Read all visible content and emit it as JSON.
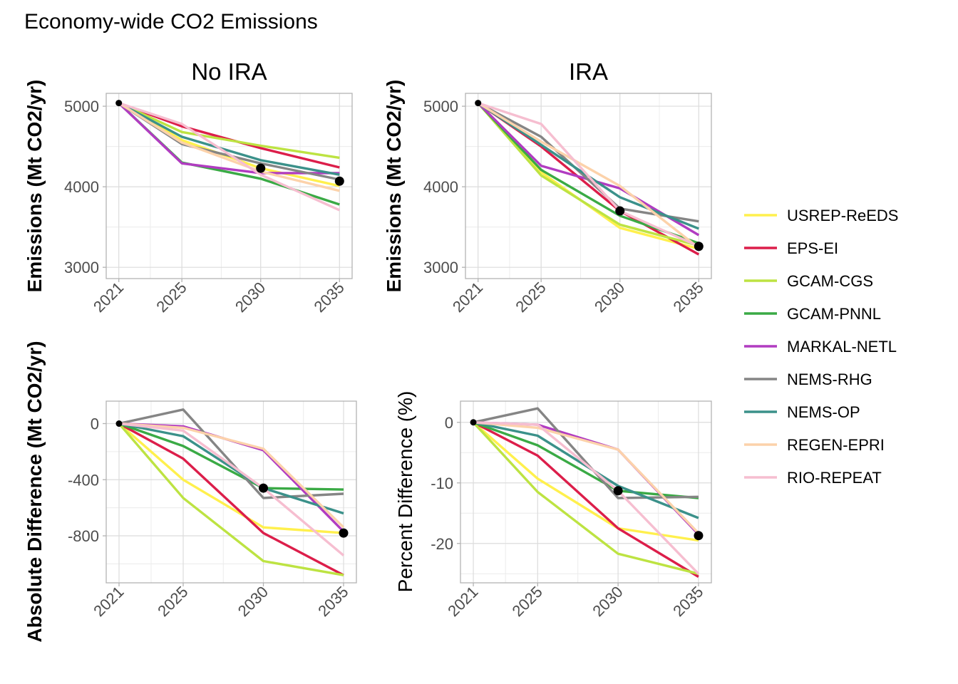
{
  "chart_data": {
    "type": "line",
    "title": "Economy-wide CO2 Emissions",
    "x": [
      2021,
      2025,
      2030,
      2035
    ],
    "legend": {
      "position": "right",
      "entries": [
        {
          "name": "USREP-ReEDS",
          "color": "#fff04d"
        },
        {
          "name": "EPS-EI",
          "color": "#dc1e4a"
        },
        {
          "name": "GCAM-CGS",
          "color": "#bde342"
        },
        {
          "name": "GCAM-PNNL",
          "color": "#3aaa45"
        },
        {
          "name": "MARKAL-NETL",
          "color": "#b13cc1"
        },
        {
          "name": "NEMS-RHG",
          "color": "#858585"
        },
        {
          "name": "NEMS-OP",
          "color": "#3b918a"
        },
        {
          "name": "REGEN-EPRI",
          "color": "#fcd2aa"
        },
        {
          "name": "RIO-REPEAT",
          "color": "#f6bed0"
        }
      ]
    },
    "panels": [
      {
        "id": "no-ira",
        "strip": "No IRA",
        "ylabel": "Emissions (Mt CO2/yr)",
        "ylabel_bold": true,
        "ylim": [
          2860,
          5160
        ],
        "yticks": [
          3000,
          4000,
          5000
        ],
        "ytick_labels": [
          "3000",
          "4000",
          "5000"
        ],
        "xtick_labels": [
          "2021",
          "2025",
          "2030",
          "2035"
        ],
        "series": [
          {
            "name": "USREP-ReEDS",
            "values": [
              5040,
              4580,
              4230,
              4010
            ]
          },
          {
            "name": "EPS-EI",
            "values": [
              5040,
              4750,
              4480,
              4240
            ]
          },
          {
            "name": "GCAM-CGS",
            "values": [
              5040,
              4680,
              4510,
              4360
            ]
          },
          {
            "name": "GCAM-PNNL",
            "values": [
              5040,
              4300,
              4100,
              3780
            ]
          },
          {
            "name": "MARKAL-NETL",
            "values": [
              5040,
              4290,
              4170,
              4170
            ]
          },
          {
            "name": "NEMS-RHG",
            "values": [
              5040,
              4530,
              4290,
              4090
            ]
          },
          {
            "name": "NEMS-OP",
            "values": [
              5040,
              4620,
              4330,
              4150
            ]
          },
          {
            "name": "REGEN-EPRI",
            "values": [
              5040,
              4550,
              4190,
              3950
            ]
          },
          {
            "name": "RIO-REPEAT",
            "values": [
              5040,
              4780,
              4150,
              3710
            ]
          }
        ],
        "markers": [
          {
            "x": 2021,
            "y": 5040,
            "size": "small"
          },
          {
            "x": 2030,
            "y": 4230,
            "size": "large"
          },
          {
            "x": 2035,
            "y": 4070,
            "size": "large"
          }
        ]
      },
      {
        "id": "ira",
        "strip": "IRA",
        "ylabel": "Emissions (Mt CO2/yr)",
        "ylabel_bold": true,
        "ylim": [
          2860,
          5160
        ],
        "yticks": [
          3000,
          4000,
          5000
        ],
        "ytick_labels": [
          "3000",
          "4000",
          "5000"
        ],
        "xtick_labels": [
          "2021",
          "2025",
          "2030",
          "2035"
        ],
        "series": [
          {
            "name": "USREP-ReEDS",
            "values": [
              5040,
              4180,
              3490,
              3230
            ]
          },
          {
            "name": "EPS-EI",
            "values": [
              5040,
              4500,
              3700,
              3160
            ]
          },
          {
            "name": "GCAM-CGS",
            "values": [
              5040,
              4140,
              3530,
              3270
            ]
          },
          {
            "name": "GCAM-PNNL",
            "values": [
              5040,
              4210,
              3640,
              3300
            ]
          },
          {
            "name": "MARKAL-NETL",
            "values": [
              5040,
              4260,
              3980,
              3400
            ]
          },
          {
            "name": "NEMS-RHG",
            "values": [
              5040,
              4620,
              3730,
              3570
            ]
          },
          {
            "name": "NEMS-OP",
            "values": [
              5040,
              4520,
              3870,
              3480
            ]
          },
          {
            "name": "REGEN-EPRI",
            "values": [
              5040,
              4560,
              4010,
              3240
            ]
          },
          {
            "name": "RIO-REPEAT",
            "values": [
              5040,
              4780,
              3700,
              3260
            ]
          }
        ],
        "markers": [
          {
            "x": 2021,
            "y": 5040,
            "size": "small"
          },
          {
            "x": 2030,
            "y": 3700,
            "size": "large"
          },
          {
            "x": 2035,
            "y": 3260,
            "size": "large"
          }
        ]
      },
      {
        "id": "absolute-difference",
        "strip": "",
        "ylabel": "Absolute Difference (Mt CO2/yr)",
        "ylabel_bold": true,
        "ylim": [
          -1135,
          160
        ],
        "yticks": [
          -800,
          -400,
          0
        ],
        "ytick_labels": [
          "-800",
          "-400",
          "0"
        ],
        "xtick_labels": [
          "2021",
          "2025",
          "2030",
          "2035"
        ],
        "series": [
          {
            "name": "USREP-ReEDS",
            "values": [
              0,
              -400,
              -740,
              -780
            ]
          },
          {
            "name": "EPS-EI",
            "values": [
              0,
              -250,
              -780,
              -1080
            ]
          },
          {
            "name": "GCAM-CGS",
            "values": [
              0,
              -530,
              -980,
              -1080
            ]
          },
          {
            "name": "GCAM-PNNL",
            "values": [
              0,
              -160,
              -460,
              -470
            ]
          },
          {
            "name": "MARKAL-NETL",
            "values": [
              0,
              -20,
              -190,
              -770
            ]
          },
          {
            "name": "NEMS-RHG",
            "values": [
              0,
              100,
              -530,
              -500
            ]
          },
          {
            "name": "NEMS-OP",
            "values": [
              0,
              -90,
              -460,
              -640
            ]
          },
          {
            "name": "REGEN-EPRI",
            "values": [
              0,
              -30,
              -180,
              -740
            ]
          },
          {
            "name": "RIO-REPEAT",
            "values": [
              0,
              -50,
              -460,
              -940
            ]
          }
        ],
        "markers": [
          {
            "x": 2021,
            "y": 0,
            "size": "small"
          },
          {
            "x": 2030,
            "y": -460,
            "size": "large"
          },
          {
            "x": 2035,
            "y": -780,
            "size": "large"
          }
        ]
      },
      {
        "id": "percent-difference",
        "strip": "",
        "ylabel": "Percent Difference (%)",
        "ylabel_bold": false,
        "ylim": [
          -26.5,
          3.5
        ],
        "yticks": [
          -20,
          -10,
          0
        ],
        "ytick_labels": [
          "-20",
          "-10",
          "0"
        ],
        "xtick_labels": [
          "2021",
          "2025",
          "2030",
          "2035"
        ],
        "series": [
          {
            "name": "USREP-ReEDS",
            "values": [
              0,
              -9.3,
              -17.5,
              -19.5
            ]
          },
          {
            "name": "EPS-EI",
            "values": [
              0,
              -5.5,
              -17.5,
              -25.5
            ]
          },
          {
            "name": "GCAM-CGS",
            "values": [
              0,
              -11.5,
              -21.7,
              -25
            ]
          },
          {
            "name": "GCAM-PNNL",
            "values": [
              0,
              -3.8,
              -11.3,
              -12.5
            ]
          },
          {
            "name": "MARKAL-NETL",
            "values": [
              0,
              -0.4,
              -4.5,
              -18.5
            ]
          },
          {
            "name": "NEMS-RHG",
            "values": [
              0,
              2.3,
              -12.5,
              -12.3
            ]
          },
          {
            "name": "NEMS-OP",
            "values": [
              0,
              -2.2,
              -10.5,
              -15.8
            ]
          },
          {
            "name": "REGEN-EPRI",
            "values": [
              0,
              -0.9,
              -4.5,
              -18.3
            ]
          },
          {
            "name": "RIO-REPEAT",
            "values": [
              0,
              -0.4,
              -11.3,
              -25
            ]
          }
        ],
        "markers": [
          {
            "x": 2021,
            "y": 0,
            "size": "small"
          },
          {
            "x": 2030,
            "y": -11.3,
            "size": "large"
          },
          {
            "x": 2035,
            "y": -18.7,
            "size": "large"
          }
        ]
      }
    ]
  }
}
